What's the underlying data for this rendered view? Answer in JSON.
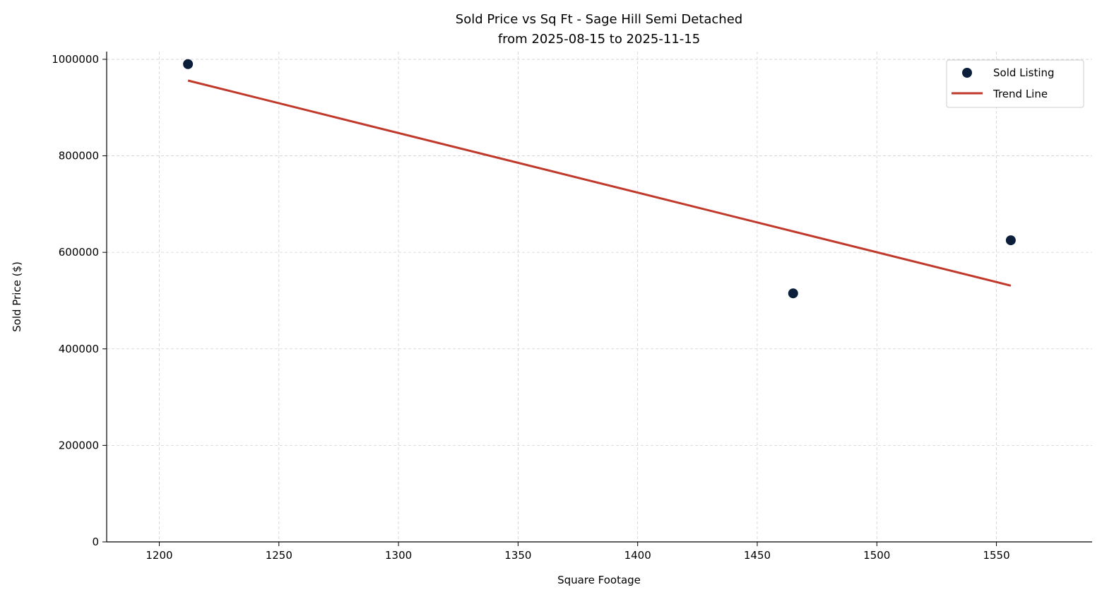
{
  "chart_data": {
    "type": "scatter",
    "title": "Sold Price vs Sq Ft - Sage Hill Semi Detached",
    "subtitle": "from 2025-08-15 to 2025-11-15",
    "xlabel": "Square Footage",
    "ylabel": "Sold Price ($)",
    "xlim": [
      1178,
      1590
    ],
    "ylim": [
      0,
      1016000
    ],
    "xticks": [
      1200,
      1250,
      1300,
      1350,
      1400,
      1450,
      1500,
      1550
    ],
    "yticks": [
      0,
      200000,
      400000,
      600000,
      800000,
      1000000
    ],
    "grid": true,
    "legend_position": "top-right",
    "series": [
      {
        "name": "Sold Listing",
        "kind": "scatter",
        "color": "#0b1f3a",
        "points": [
          {
            "x": 1212,
            "y": 990000
          },
          {
            "x": 1465,
            "y": 515000
          },
          {
            "x": 1556,
            "y": 625000
          }
        ]
      },
      {
        "name": "Trend Line",
        "kind": "line",
        "color": "#c0392b",
        "points": [
          {
            "x": 1212,
            "y": 956000
          },
          {
            "x": 1556,
            "y": 531000
          }
        ]
      }
    ]
  }
}
